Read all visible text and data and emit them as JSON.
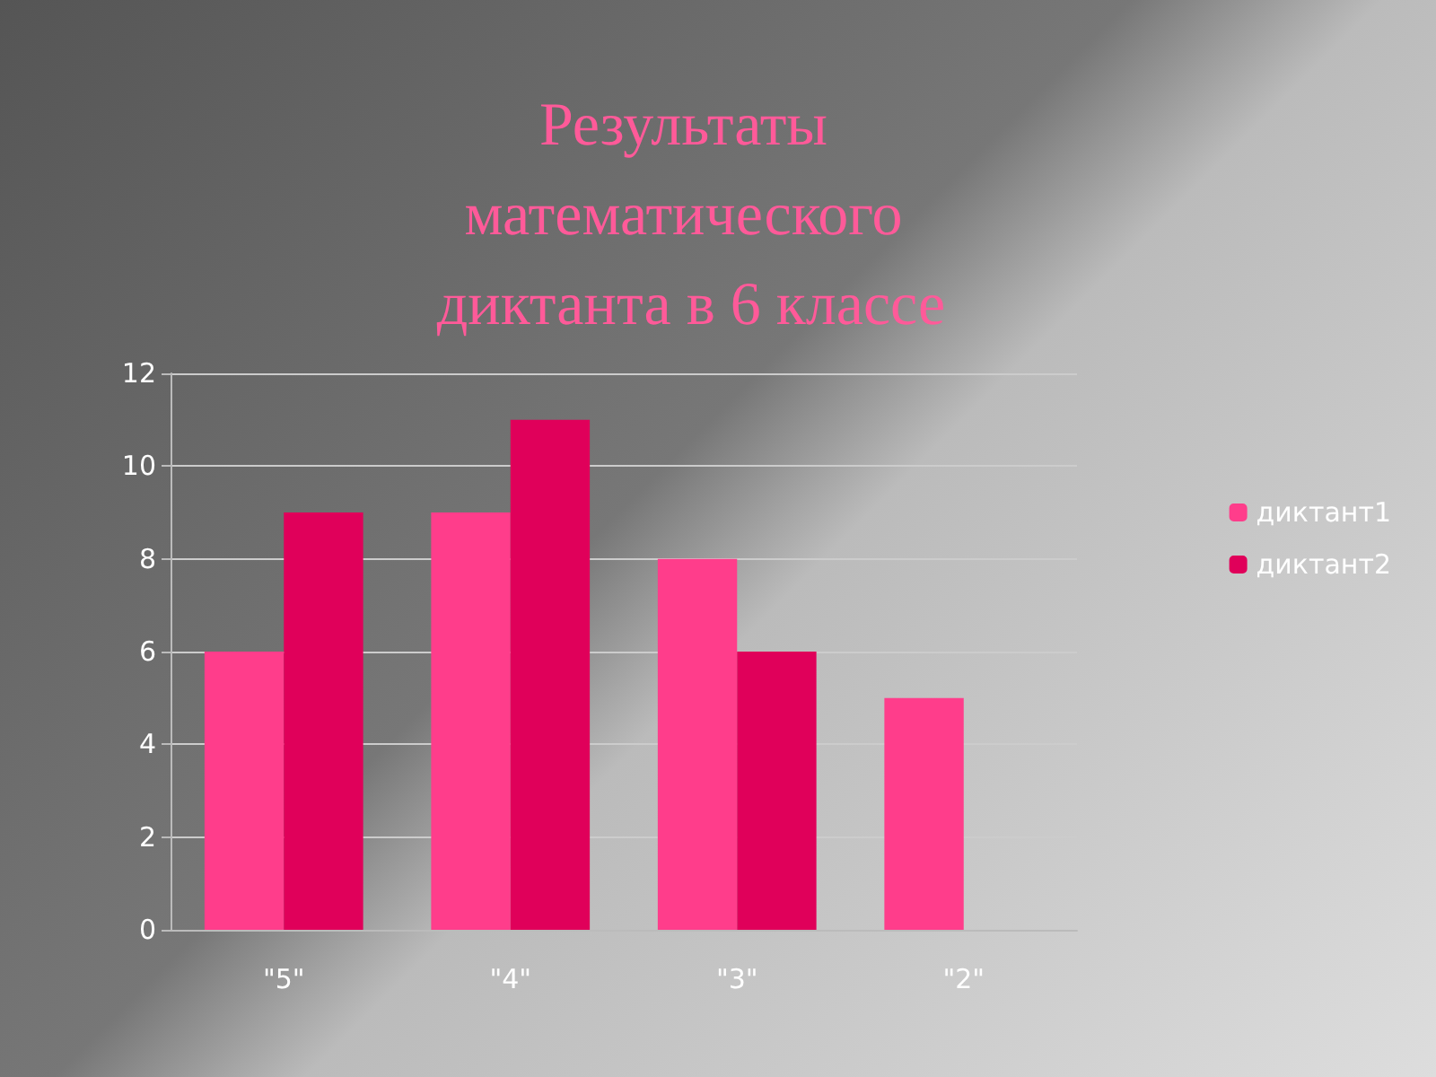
{
  "chart_data": {
    "type": "bar",
    "title": "Результаты математического диктанта в 6 классе",
    "categories": [
      "\"5\"",
      "\"4\"",
      "\"3\"",
      "\"2\""
    ],
    "series": [
      {
        "name": "диктант1",
        "color": "#ff3d8b",
        "values": [
          6,
          9,
          8,
          5
        ]
      },
      {
        "name": "диктант2",
        "color": "#e0005a",
        "values": [
          9,
          11,
          6,
          0
        ]
      }
    ],
    "ylim": [
      0,
      12
    ],
    "yticks": [
      0,
      2,
      4,
      6,
      8,
      10,
      12
    ],
    "grid": "y",
    "legend": "right"
  }
}
